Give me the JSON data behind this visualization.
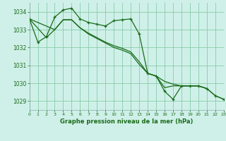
{
  "title": "Graphe pression niveau de la mer (hPa)",
  "background_color": "#cff0e8",
  "grid_color": "#88ccaa",
  "line_color": "#1a6b1a",
  "border_color": "#88aaaa",
  "xlim": [
    0,
    23
  ],
  "ylim": [
    1028.5,
    1034.5
  ],
  "yticks": [
    1029,
    1030,
    1031,
    1032,
    1033,
    1034
  ],
  "xticks": [
    0,
    1,
    2,
    3,
    4,
    5,
    6,
    7,
    8,
    9,
    10,
    11,
    12,
    13,
    14,
    15,
    16,
    17,
    18,
    19,
    20,
    21,
    22,
    23
  ],
  "series": [
    {
      "x": [
        0,
        1,
        2,
        3,
        4,
        5,
        6,
        7,
        8,
        9,
        10,
        11,
        12,
        13,
        14,
        15,
        16,
        17,
        18,
        19,
        20,
        21,
        22,
        23
      ],
      "y": [
        1033.6,
        1032.3,
        1032.6,
        1033.7,
        1034.1,
        1034.2,
        1033.6,
        1033.4,
        1033.3,
        1033.2,
        1033.5,
        1033.55,
        1033.6,
        1032.75,
        1030.55,
        1030.4,
        1029.55,
        1029.1,
        1029.85,
        1029.85,
        1029.85,
        1029.7,
        1029.3,
        1029.1
      ],
      "has_marker": true
    },
    {
      "x": [
        0,
        3,
        4,
        5,
        6,
        7,
        8,
        9,
        10,
        11,
        12,
        13,
        14,
        15,
        16,
        17,
        18,
        19,
        20,
        21
      ],
      "y": [
        1033.6,
        1033.0,
        1033.55,
        1033.55,
        1033.1,
        1032.8,
        1032.55,
        1032.3,
        1032.1,
        1031.95,
        1031.75,
        1031.2,
        1030.55,
        1030.4,
        1030.1,
        1029.95,
        1029.85,
        1029.85,
        1029.85,
        1029.7
      ],
      "has_marker": false
    },
    {
      "x": [
        0,
        2,
        3,
        4,
        5,
        6,
        7,
        8,
        9,
        10,
        11,
        12,
        13,
        14,
        15,
        16,
        17,
        18,
        19,
        20,
        21,
        22,
        23
      ],
      "y": [
        1033.6,
        1032.55,
        1033.0,
        1033.55,
        1033.55,
        1033.1,
        1032.75,
        1032.5,
        1032.25,
        1032.0,
        1031.85,
        1031.65,
        1031.05,
        1030.55,
        1030.4,
        1029.75,
        1029.85,
        1029.85,
        1029.85,
        1029.85,
        1029.7,
        1029.3,
        1029.1
      ],
      "has_marker": false
    }
  ]
}
